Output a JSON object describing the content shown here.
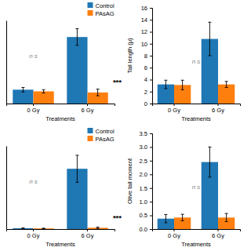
{
  "chart_data": [
    {
      "type": "bar",
      "x_label": "Treatments",
      "categories": [
        "0 Gy",
        "6 Gy"
      ],
      "series": [
        {
          "name": "Control",
          "values": [
            2.5,
            12.0
          ],
          "errors": [
            0.4,
            1.5
          ]
        },
        {
          "name": "PAsAG",
          "values": [
            2.2,
            2.0
          ],
          "errors": [
            0.3,
            0.6
          ]
        }
      ],
      "ylim": [
        0,
        15
      ],
      "tick_labels": "x",
      "legend": "upper right",
      "annotations": [
        {
          "text": "n s",
          "x": 0.0,
          "y": 8.25
        },
        {
          "text": "***",
          "x": 1.55,
          "y": 3.45
        }
      ]
    },
    {
      "type": "bar",
      "x_label": "Treatments",
      "y_label": "Tail length (μ)",
      "categories": [
        "0 Gy",
        "6 Gy"
      ],
      "series": [
        {
          "values": [
            3.2,
            10.8
          ],
          "errors": [
            0.7,
            2.8
          ]
        },
        {
          "values": [
            3.1,
            3.2
          ],
          "errors": [
            0.8,
            0.5
          ]
        }
      ],
      "ylim": [
        0,
        16
      ],
      "yticks": [
        0,
        2,
        4,
        6,
        8,
        10,
        12,
        14,
        16
      ],
      "annotations": [
        {
          "text": "n s",
          "x": 0.5,
          "y": 6.72
        }
      ]
    },
    {
      "type": "bar",
      "x_label": "Treatments",
      "categories": [
        "0 Gy",
        "6 Gy"
      ],
      "series": [
        {
          "name": "Control",
          "values": [
            0.08,
            5.8
          ],
          "errors": [
            0.02,
            1.3
          ]
        },
        {
          "name": "PAsAG",
          "values": [
            0.06,
            0.12
          ],
          "errors": [
            0.02,
            0.06
          ]
        }
      ],
      "ylim": [
        0,
        8
      ],
      "tick_labels": "x",
      "legend": "upper right",
      "annotations": [
        {
          "text": "n s",
          "x": 0.0,
          "y": 4.4
        },
        {
          "text": "***",
          "x": 1.55,
          "y": 0.8
        }
      ]
    },
    {
      "type": "bar",
      "x_label": "Treatments",
      "y_label": "Olive tail moment",
      "categories": [
        "0 Gy",
        "6 Gy"
      ],
      "series": [
        {
          "values": [
            0.38,
            2.45
          ],
          "errors": [
            0.15,
            0.55
          ]
        },
        {
          "values": [
            0.42,
            0.42
          ],
          "errors": [
            0.12,
            0.15
          ]
        }
      ],
      "ylim": [
        0,
        3.5
      ],
      "yticks": [
        {
          "value": 0,
          "label": "0.0"
        },
        0.5,
        {
          "value": 1.0,
          "label": "1.0"
        },
        1.5,
        {
          "value": 2.0,
          "label": "2.0"
        },
        2.5,
        {
          "value": 3.0,
          "label": "3.0"
        },
        3.5
      ],
      "annotations": [
        {
          "text": "n s",
          "x": 0.5,
          "y": 1.47
        }
      ]
    }
  ]
}
